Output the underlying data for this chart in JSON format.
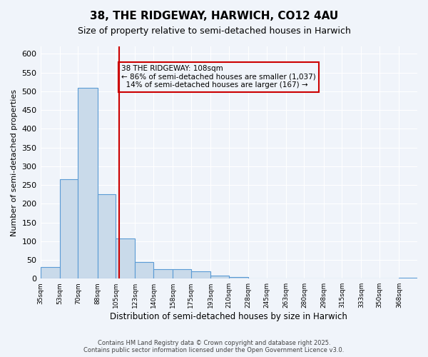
{
  "title_line1": "38, THE RIDGEWAY, HARWICH, CO12 4AU",
  "title_line2": "Size of property relative to semi-detached houses in Harwich",
  "xlabel": "Distribution of semi-detached houses by size in Harwich",
  "ylabel": "Number of semi-detached properties",
  "bar_color": "#c9daea",
  "bar_edge_color": "#5b9bd5",
  "vline_color": "#cc0000",
  "vline_x": 108,
  "annotation_text": "38 THE RIDGEWAY: 108sqm\n← 86% of semi-detached houses are smaller (1,037)\n  14% of semi-detached houses are larger (167) →",
  "annotation_box_color": "#cc0000",
  "bins": [
    35,
    53,
    70,
    88,
    105,
    123,
    140,
    158,
    175,
    193,
    210,
    228,
    245,
    263,
    280,
    298,
    315,
    333,
    350,
    368,
    385
  ],
  "counts": [
    30,
    265,
    510,
    225,
    108,
    45,
    25,
    25,
    20,
    8,
    5,
    0,
    0,
    0,
    0,
    0,
    0,
    0,
    0,
    2,
    2
  ],
  "ylim": [
    0,
    620
  ],
  "yticks": [
    0,
    50,
    100,
    150,
    200,
    250,
    300,
    350,
    400,
    450,
    500,
    550,
    600
  ],
  "footer": "Contains HM Land Registry data © Crown copyright and database right 2025.\nContains public sector information licensed under the Open Government Licence v3.0.",
  "background_color": "#f0f4fa",
  "grid_color": "#ffffff"
}
